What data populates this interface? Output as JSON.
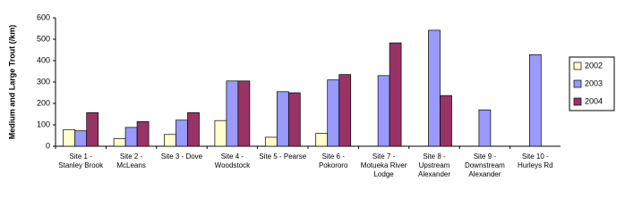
{
  "chart_data": {
    "type": "bar",
    "y_label": "Medium and Large Trout (/km)",
    "categories": [
      "Site 1 - Stanley Brook",
      "Site 2 - McLeans",
      "Site 3 - Dove",
      "Site 4 - Woodstock",
      "Site 5 - Pearse",
      "Site 6 - Pokororo",
      "Site 7 - Motueka River Lodge",
      "Site 8 - Upstream Alexander",
      "Site 9 - Downstream Alexander",
      "Site 10 - Hurleys Rd"
    ],
    "series": [
      {
        "name": "2002",
        "color": "#ffffcc",
        "values": [
          78,
          35,
          55,
          120,
          42,
          60,
          null,
          null,
          null,
          null
        ]
      },
      {
        "name": "2003",
        "color": "#9999ff",
        "values": [
          72,
          88,
          122,
          305,
          255,
          310,
          330,
          542,
          170,
          428
        ]
      },
      {
        "name": "2004",
        "color": "#993366",
        "values": [
          157,
          115,
          157,
          305,
          250,
          335,
          483,
          237,
          null,
          null
        ]
      }
    ],
    "ylim": [
      0,
      600
    ],
    "yticks": [
      0,
      100,
      200,
      300,
      400,
      500,
      600
    ],
    "legend": "right"
  }
}
